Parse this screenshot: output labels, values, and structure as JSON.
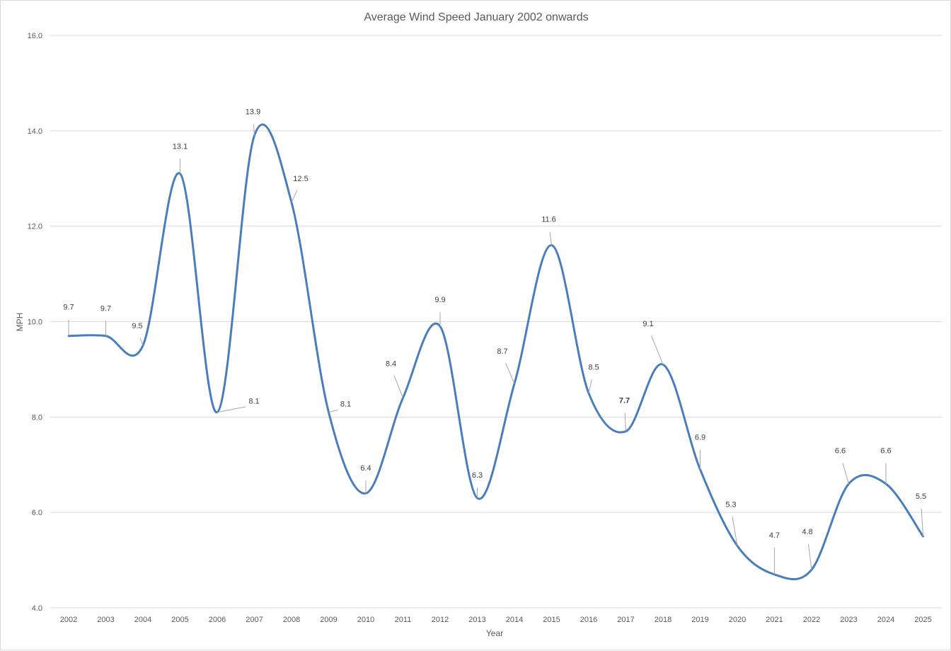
{
  "chart_data": {
    "type": "line",
    "title": "Average Wind Speed January 2002 onwards",
    "xlabel": "Year",
    "ylabel": "MPH",
    "ylim": [
      4.0,
      16.0
    ],
    "y_ticks": [
      "4.0",
      "6.0",
      "8.0",
      "10.0",
      "12.0",
      "14.0",
      "16.0"
    ],
    "grid": true,
    "smoothed": true,
    "categories": [
      "2002",
      "2003",
      "2004",
      "2005",
      "2006",
      "2007",
      "2008",
      "2009",
      "2010",
      "2011",
      "2012",
      "2013",
      "2014",
      "2015",
      "2016",
      "2017",
      "2018",
      "2019",
      "2020",
      "2021",
      "2022",
      "2023",
      "2024",
      "2025"
    ],
    "values": [
      9.7,
      9.7,
      9.5,
      13.1,
      8.1,
      13.9,
      12.5,
      8.1,
      6.4,
      8.4,
      9.9,
      6.3,
      8.7,
      11.6,
      8.5,
      7.7,
      9.1,
      6.9,
      5.3,
      4.7,
      4.8,
      6.6,
      6.6,
      5.5
    ],
    "data_labels": [
      "9.7",
      "9.7",
      "9.5",
      "13.1",
      "8.1",
      "13.9",
      "12.5",
      "8.1",
      "6.4",
      "8.4",
      "9.9",
      "6.3",
      "8.7",
      "11.6",
      "8.5",
      "7.7",
      "9.1",
      "6.9",
      "5.3",
      "4.7",
      "4.8",
      "6.6",
      "6.6",
      "5.5"
    ],
    "series_color": "#4a7ebb",
    "grid_color": "#d9d9d9"
  }
}
